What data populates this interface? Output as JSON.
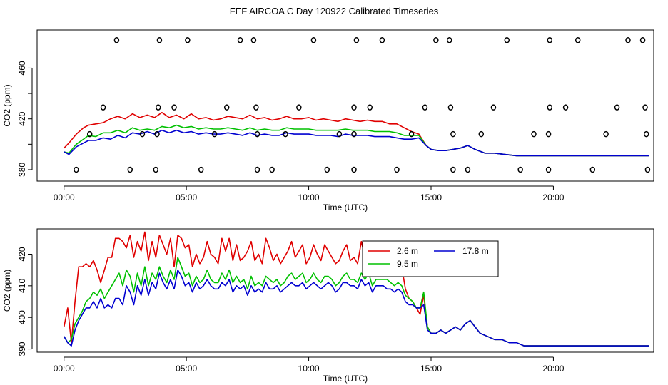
{
  "title": "FEF AIRCOA C  Day 120922  Calibrated Timeseries",
  "colors": {
    "red": "#e00000",
    "green": "#00c000",
    "blue": "#0000d0",
    "flag": "#000000"
  },
  "chart_data": [
    {
      "type": "line",
      "panel": "top",
      "xlabel": "Time (UTC)",
      "ylabel": "CO2 (ppm)",
      "xlim": [
        -1.1,
        24.1
      ],
      "ylim": [
        371,
        490
      ],
      "xticks": [
        0,
        5,
        10,
        15,
        20
      ],
      "xtick_labels": [
        "00:00",
        "05:00",
        "10:00",
        "15:00",
        "20:00"
      ],
      "yticks": [
        380,
        400,
        420,
        440,
        460
      ],
      "ytick_labels": [
        "380",
        "",
        "420",
        "",
        "460"
      ],
      "x": [
        0.0,
        0.2,
        0.5,
        0.8,
        1.0,
        1.3,
        1.6,
        1.9,
        2.2,
        2.5,
        2.8,
        3.1,
        3.4,
        3.7,
        4.0,
        4.3,
        4.6,
        4.9,
        5.2,
        5.5,
        5.8,
        6.1,
        6.4,
        6.7,
        7.0,
        7.3,
        7.6,
        7.9,
        8.2,
        8.5,
        8.8,
        9.1,
        9.4,
        9.7,
        10.0,
        10.3,
        10.6,
        10.9,
        11.2,
        11.5,
        11.8,
        12.1,
        12.4,
        12.7,
        13.0,
        13.3,
        13.6,
        13.9,
        14.2,
        14.5,
        14.8,
        15.0,
        15.3,
        15.6,
        15.9,
        16.2,
        16.5,
        16.8,
        17.2,
        17.6,
        18.0,
        18.5,
        19.0,
        19.5,
        20.0,
        20.5,
        21.0,
        21.5,
        22.0,
        22.5,
        23.0,
        23.5,
        23.9
      ],
      "series": [
        {
          "name": "2.6 m",
          "color": "red",
          "values": [
            397,
            401,
            408,
            413,
            415,
            416,
            417,
            420,
            422,
            420,
            424,
            421,
            423,
            421,
            425,
            421,
            423,
            420,
            424,
            420,
            421,
            419,
            420,
            422,
            421,
            420,
            423,
            420,
            421,
            419,
            420,
            422,
            420,
            420,
            421,
            419,
            420,
            419,
            418,
            420,
            419,
            418,
            419,
            418,
            418,
            416,
            416,
            413,
            410,
            408,
            399,
            396,
            395,
            395,
            396,
            397,
            399,
            396,
            393,
            393,
            392,
            391,
            391,
            391,
            391,
            391,
            391,
            391,
            391,
            391,
            391,
            391,
            391
          ]
        },
        {
          "name": "9.5 m",
          "color": "green",
          "values": [
            394,
            393,
            400,
            404,
            407,
            406,
            409,
            409,
            411,
            409,
            413,
            411,
            412,
            411,
            414,
            413,
            415,
            413,
            414,
            412,
            413,
            412,
            412,
            413,
            412,
            411,
            413,
            411,
            412,
            411,
            411,
            413,
            412,
            412,
            412,
            411,
            411,
            411,
            411,
            412,
            411,
            411,
            411,
            410,
            410,
            410,
            409,
            407,
            407,
            407,
            399,
            396,
            395,
            395,
            396,
            397,
            399,
            396,
            393,
            393,
            392,
            391,
            391,
            391,
            391,
            391,
            391,
            391,
            391,
            391,
            391,
            391,
            391
          ]
        },
        {
          "name": "17.8 m",
          "color": "blue",
          "values": [
            394,
            392,
            398,
            401,
            403,
            403,
            405,
            404,
            407,
            405,
            409,
            408,
            410,
            408,
            411,
            409,
            411,
            409,
            410,
            408,
            409,
            408,
            408,
            409,
            408,
            407,
            409,
            407,
            408,
            407,
            407,
            409,
            408,
            408,
            408,
            407,
            407,
            407,
            406,
            408,
            407,
            407,
            407,
            406,
            406,
            406,
            405,
            404,
            404,
            405,
            399,
            396,
            395,
            395,
            396,
            397,
            399,
            396,
            393,
            393,
            392,
            391,
            391,
            391,
            391,
            391,
            391,
            391,
            391,
            391,
            391,
            391,
            391
          ]
        }
      ],
      "flags": [
        [
          2.15,
          482
        ],
        [
          3.9,
          482
        ],
        [
          5.05,
          482
        ],
        [
          7.2,
          482
        ],
        [
          7.75,
          482
        ],
        [
          10.2,
          482
        ],
        [
          11.95,
          482
        ],
        [
          13.0,
          482
        ],
        [
          15.2,
          482
        ],
        [
          15.75,
          482
        ],
        [
          18.1,
          482
        ],
        [
          19.85,
          482
        ],
        [
          21.0,
          482
        ],
        [
          23.05,
          482
        ],
        [
          23.65,
          482
        ],
        [
          1.6,
          429
        ],
        [
          3.85,
          429
        ],
        [
          4.5,
          429
        ],
        [
          6.65,
          429
        ],
        [
          7.85,
          429
        ],
        [
          9.6,
          429
        ],
        [
          11.85,
          429
        ],
        [
          12.5,
          429
        ],
        [
          14.75,
          429
        ],
        [
          15.8,
          429
        ],
        [
          17.55,
          429
        ],
        [
          19.85,
          429
        ],
        [
          20.5,
          429
        ],
        [
          22.6,
          429
        ],
        [
          23.75,
          429
        ],
        [
          1.05,
          408
        ],
        [
          3.2,
          408
        ],
        [
          3.8,
          408
        ],
        [
          6.15,
          408
        ],
        [
          7.9,
          408
        ],
        [
          9.05,
          408
        ],
        [
          11.25,
          408
        ],
        [
          11.85,
          408
        ],
        [
          14.2,
          408
        ],
        [
          15.9,
          408
        ],
        [
          17.05,
          408
        ],
        [
          19.2,
          408
        ],
        [
          19.8,
          408
        ],
        [
          22.15,
          408
        ],
        [
          23.8,
          408
        ],
        [
          0.5,
          380
        ],
        [
          2.7,
          380
        ],
        [
          3.75,
          380
        ],
        [
          5.6,
          380
        ],
        [
          7.9,
          380
        ],
        [
          8.5,
          380
        ],
        [
          10.75,
          380
        ],
        [
          11.85,
          380
        ],
        [
          13.6,
          380
        ],
        [
          15.9,
          380
        ],
        [
          16.5,
          380
        ],
        [
          18.65,
          380
        ],
        [
          19.8,
          380
        ],
        [
          21.6,
          380
        ],
        [
          23.85,
          380
        ]
      ]
    },
    {
      "type": "line",
      "panel": "bottom",
      "xlabel": "Time (UTC)",
      "ylabel": "CO2 (ppm)",
      "xlim": [
        -1.1,
        24.1
      ],
      "ylim": [
        389,
        428
      ],
      "xticks": [
        0,
        5,
        10,
        15,
        20
      ],
      "xtick_labels": [
        "00:00",
        "05:00",
        "10:00",
        "15:00",
        "20:00"
      ],
      "yticks": [
        390,
        400,
        410,
        420
      ],
      "ytick_labels": [
        "390",
        "400",
        "410",
        "420"
      ],
      "legend": "top-right",
      "x": [
        0.0,
        0.15,
        0.3,
        0.45,
        0.6,
        0.75,
        0.9,
        1.05,
        1.2,
        1.35,
        1.5,
        1.65,
        1.8,
        1.95,
        2.1,
        2.25,
        2.4,
        2.55,
        2.7,
        2.85,
        3.0,
        3.15,
        3.3,
        3.45,
        3.6,
        3.75,
        3.9,
        4.05,
        4.2,
        4.35,
        4.5,
        4.65,
        4.8,
        4.95,
        5.1,
        5.25,
        5.4,
        5.55,
        5.7,
        5.85,
        6.0,
        6.15,
        6.3,
        6.45,
        6.6,
        6.75,
        6.9,
        7.05,
        7.2,
        7.35,
        7.5,
        7.65,
        7.8,
        7.95,
        8.1,
        8.25,
        8.4,
        8.55,
        8.7,
        8.85,
        9.0,
        9.15,
        9.3,
        9.45,
        9.6,
        9.75,
        9.9,
        10.05,
        10.2,
        10.35,
        10.5,
        10.65,
        10.8,
        10.95,
        11.1,
        11.25,
        11.4,
        11.55,
        11.7,
        11.85,
        12.0,
        12.15,
        12.3,
        12.45,
        12.6,
        12.75,
        12.9,
        13.05,
        13.2,
        13.35,
        13.5,
        13.65,
        13.8,
        13.95,
        14.1,
        14.25,
        14.4,
        14.55,
        14.7,
        14.85,
        15.0,
        15.2,
        15.4,
        15.6,
        15.8,
        16.0,
        16.2,
        16.4,
        16.6,
        16.8,
        17.0,
        17.3,
        17.6,
        17.9,
        18.2,
        18.5,
        18.8,
        19.1,
        19.4,
        19.7,
        20.0,
        20.3,
        20.6,
        20.9,
        21.2,
        21.5,
        21.8,
        22.1,
        22.4,
        22.7,
        23.0,
        23.3,
        23.6,
        23.9
      ],
      "series": [
        {
          "name": "2.6 m",
          "color": "red",
          "values": [
            397,
            403,
            392,
            405,
            416,
            416,
            417,
            416,
            418,
            415,
            411,
            415,
            419,
            419,
            425,
            425,
            424,
            422,
            426,
            419,
            424,
            421,
            427,
            418,
            424,
            419,
            426,
            423,
            420,
            425,
            416,
            426,
            425,
            422,
            423,
            416,
            420,
            417,
            419,
            424,
            420,
            419,
            417,
            425,
            421,
            425,
            418,
            423,
            418,
            419,
            421,
            424,
            418,
            420,
            417,
            425,
            422,
            418,
            420,
            417,
            419,
            421,
            424,
            419,
            421,
            423,
            417,
            419,
            423,
            420,
            418,
            423,
            421,
            419,
            417,
            418,
            421,
            423,
            418,
            419,
            417,
            424,
            419,
            422,
            417,
            419,
            420,
            421,
            418,
            418,
            417,
            418,
            416,
            409,
            406,
            405,
            403,
            401,
            407,
            397,
            395,
            395,
            396,
            395,
            396,
            397,
            396,
            398,
            399,
            397,
            395,
            394,
            393,
            393,
            392,
            392,
            391,
            391,
            391,
            391,
            391,
            391,
            391,
            391,
            391,
            391,
            391,
            391,
            391,
            391,
            391,
            391,
            391,
            391
          ]
        },
        {
          "name": "9.5 m",
          "color": "green",
          "values": [
            394,
            392,
            393,
            398,
            400,
            402,
            405,
            406,
            408,
            407,
            409,
            406,
            408,
            410,
            412,
            414,
            410,
            415,
            413,
            408,
            414,
            410,
            416,
            410,
            414,
            412,
            416,
            413,
            411,
            415,
            412,
            419,
            416,
            413,
            414,
            410,
            413,
            411,
            412,
            415,
            412,
            411,
            411,
            414,
            412,
            415,
            411,
            413,
            411,
            412,
            409,
            413,
            410,
            411,
            410,
            413,
            412,
            411,
            412,
            410,
            411,
            413,
            414,
            412,
            413,
            414,
            411,
            412,
            414,
            412,
            411,
            413,
            413,
            412,
            410,
            411,
            413,
            414,
            412,
            412,
            411,
            414,
            412,
            414,
            410,
            412,
            412,
            412,
            412,
            411,
            410,
            411,
            410,
            407,
            406,
            405,
            403,
            403,
            408,
            397,
            395,
            395,
            396,
            395,
            396,
            397,
            396,
            398,
            399,
            397,
            395,
            394,
            393,
            393,
            392,
            392,
            391,
            391,
            391,
            391,
            391,
            391,
            391,
            391,
            391,
            391,
            391,
            391,
            391,
            391,
            391,
            391,
            391,
            391
          ]
        },
        {
          "name": "17.8 m",
          "color": "blue",
          "values": [
            394,
            392,
            391,
            396,
            399,
            401,
            403,
            403,
            405,
            403,
            406,
            403,
            404,
            403,
            406,
            406,
            404,
            410,
            408,
            404,
            410,
            407,
            412,
            407,
            411,
            409,
            414,
            411,
            409,
            412,
            409,
            415,
            413,
            410,
            411,
            408,
            411,
            409,
            410,
            412,
            410,
            409,
            409,
            411,
            410,
            412,
            408,
            410,
            409,
            410,
            407,
            410,
            408,
            409,
            408,
            411,
            409,
            409,
            410,
            408,
            409,
            410,
            411,
            410,
            410,
            411,
            409,
            410,
            411,
            410,
            409,
            410,
            411,
            410,
            408,
            409,
            411,
            411,
            410,
            410,
            409,
            412,
            410,
            411,
            408,
            410,
            410,
            410,
            409,
            409,
            408,
            409,
            408,
            405,
            404,
            404,
            403,
            403,
            404,
            396,
            395,
            395,
            396,
            395,
            396,
            397,
            396,
            398,
            399,
            397,
            395,
            394,
            393,
            393,
            392,
            392,
            391,
            391,
            391,
            391,
            391,
            391,
            391,
            391,
            391,
            391,
            391,
            391,
            391,
            391,
            391,
            391,
            391,
            391
          ]
        }
      ]
    }
  ]
}
